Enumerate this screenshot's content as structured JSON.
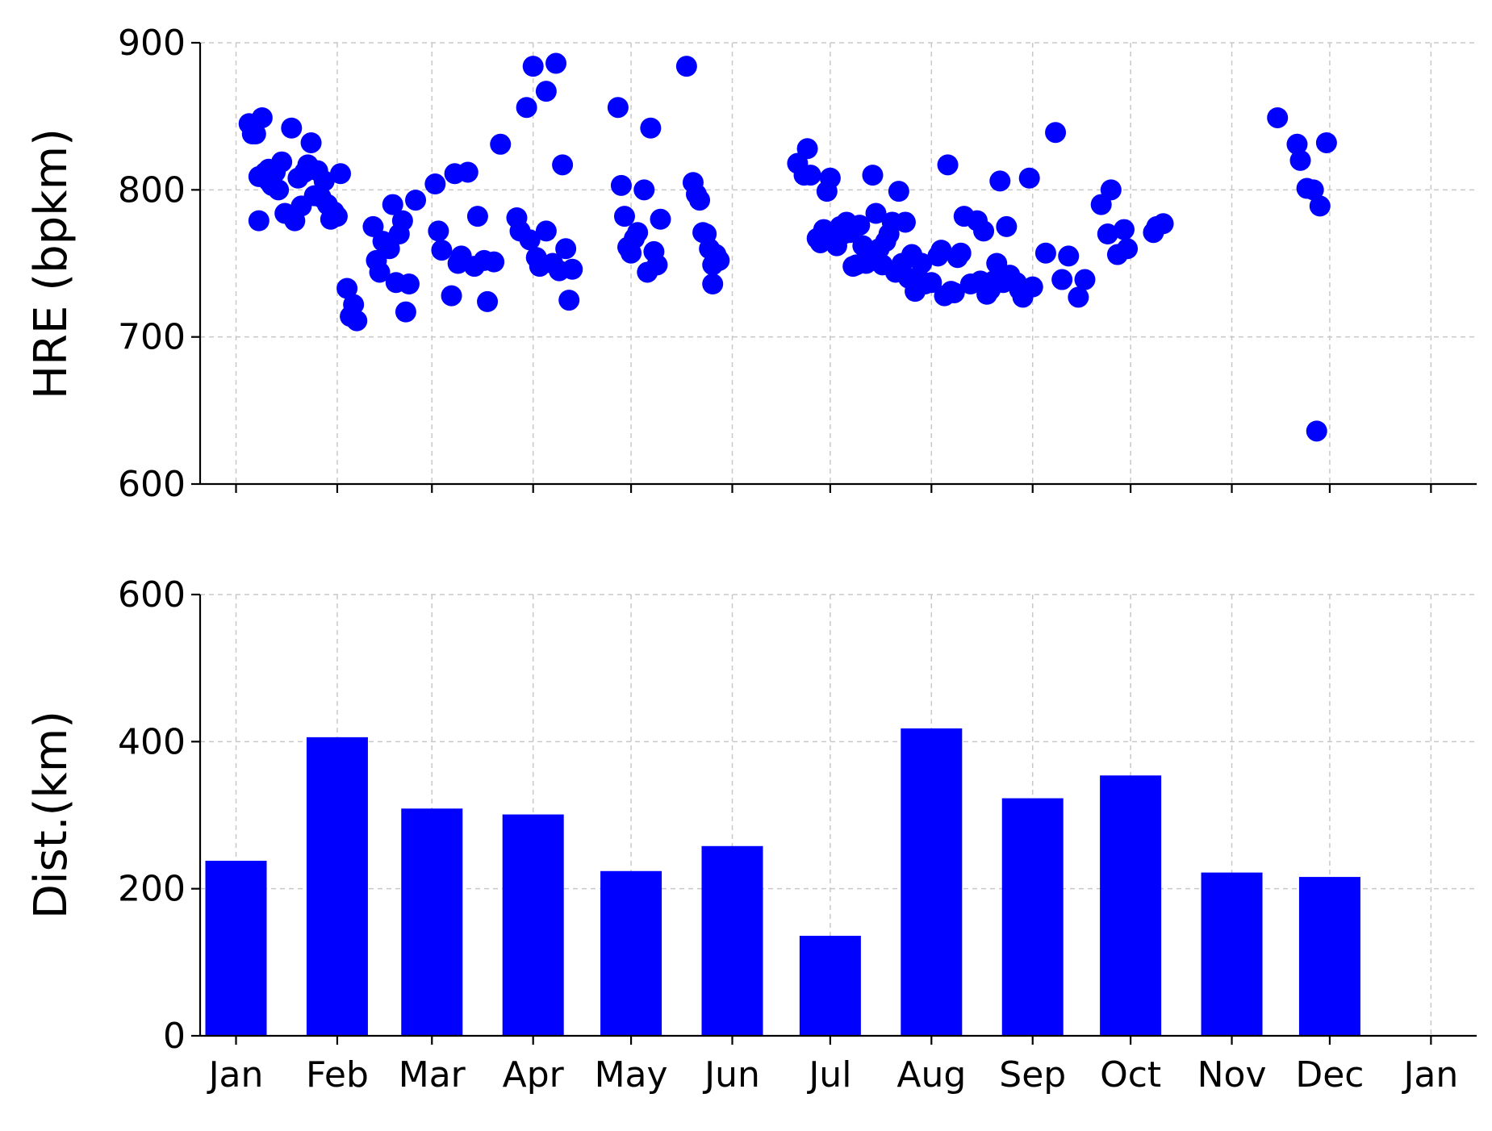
{
  "chart_data": [
    {
      "type": "scatter",
      "ylabel": "HRE (bpkm)",
      "ylim": [
        600,
        900
      ],
      "yticks": [
        "600",
        "700",
        "800",
        "900"
      ],
      "xlim": [
        "2023-12-21",
        "2025-01-15"
      ],
      "xticks": [
        "2024-01-01",
        "2024-02-01",
        "2024-03-01",
        "2024-04-01",
        "2024-05-01",
        "2024-06-01",
        "2024-07-01",
        "2024-08-01",
        "2024-09-01",
        "2024-10-01",
        "2024-11-01",
        "2024-12-01",
        "2025-01-01"
      ],
      "xtick_labels": [],
      "grid": true,
      "color": "#0000ff",
      "points": [
        [
          "2024-01-05",
          845
        ],
        [
          "2024-01-06",
          838
        ],
        [
          "2024-01-07",
          838
        ],
        [
          "2024-01-08",
          779
        ],
        [
          "2024-01-08",
          809
        ],
        [
          "2024-01-09",
          849
        ],
        [
          "2024-01-10",
          812
        ],
        [
          "2024-01-11",
          814
        ],
        [
          "2024-01-11",
          806
        ],
        [
          "2024-01-12",
          803
        ],
        [
          "2024-01-13",
          812
        ],
        [
          "2024-01-14",
          800
        ],
        [
          "2024-01-15",
          819
        ],
        [
          "2024-01-16",
          784
        ],
        [
          "2024-01-18",
          842
        ],
        [
          "2024-01-19",
          779
        ],
        [
          "2024-01-20",
          808
        ],
        [
          "2024-01-21",
          789
        ],
        [
          "2024-01-22",
          812
        ],
        [
          "2024-01-23",
          817
        ],
        [
          "2024-01-24",
          832
        ],
        [
          "2024-01-25",
          796
        ],
        [
          "2024-01-26",
          813
        ],
        [
          "2024-01-27",
          795
        ],
        [
          "2024-01-28",
          806
        ],
        [
          "2024-01-29",
          790
        ],
        [
          "2024-01-30",
          780
        ],
        [
          "2024-01-31",
          785
        ],
        [
          "2024-02-01",
          782
        ],
        [
          "2024-02-02",
          811
        ],
        [
          "2024-02-04",
          733
        ],
        [
          "2024-02-05",
          714
        ],
        [
          "2024-02-06",
          722
        ],
        [
          "2024-02-07",
          711
        ],
        [
          "2024-02-12",
          775
        ],
        [
          "2024-02-13",
          752
        ],
        [
          "2024-02-14",
          744
        ],
        [
          "2024-02-15",
          765
        ],
        [
          "2024-02-17",
          760
        ],
        [
          "2024-02-18",
          790
        ],
        [
          "2024-02-19",
          737
        ],
        [
          "2024-02-20",
          770
        ],
        [
          "2024-02-21",
          779
        ],
        [
          "2024-02-22",
          717
        ],
        [
          "2024-02-23",
          736
        ],
        [
          "2024-02-25",
          793
        ],
        [
          "2024-03-02",
          804
        ],
        [
          "2024-03-03",
          772
        ],
        [
          "2024-03-04",
          759
        ],
        [
          "2024-03-07",
          728
        ],
        [
          "2024-03-08",
          811
        ],
        [
          "2024-03-09",
          750
        ],
        [
          "2024-03-10",
          755
        ],
        [
          "2024-03-12",
          812
        ],
        [
          "2024-03-14",
          748
        ],
        [
          "2024-03-15",
          782
        ],
        [
          "2024-03-17",
          752
        ],
        [
          "2024-03-18",
          724
        ],
        [
          "2024-03-20",
          751
        ],
        [
          "2024-03-22",
          831
        ],
        [
          "2024-03-27",
          781
        ],
        [
          "2024-03-28",
          772
        ],
        [
          "2024-03-30",
          856
        ],
        [
          "2024-03-31",
          766
        ],
        [
          "2024-04-01",
          884
        ],
        [
          "2024-04-02",
          754
        ],
        [
          "2024-04-03",
          748
        ],
        [
          "2024-04-05",
          867
        ],
        [
          "2024-04-05",
          772
        ],
        [
          "2024-04-07",
          750
        ],
        [
          "2024-04-08",
          886
        ],
        [
          "2024-04-09",
          745
        ],
        [
          "2024-04-10",
          817
        ],
        [
          "2024-04-11",
          760
        ],
        [
          "2024-04-12",
          725
        ],
        [
          "2024-04-13",
          746
        ],
        [
          "2024-04-27",
          856
        ],
        [
          "2024-04-28",
          803
        ],
        [
          "2024-04-29",
          782
        ],
        [
          "2024-04-30",
          761
        ],
        [
          "2024-05-01",
          757
        ],
        [
          "2024-05-02",
          767
        ],
        [
          "2024-05-03",
          771
        ],
        [
          "2024-05-05",
          800
        ],
        [
          "2024-05-06",
          744
        ],
        [
          "2024-05-07",
          842
        ],
        [
          "2024-05-08",
          758
        ],
        [
          "2024-05-09",
          749
        ],
        [
          "2024-05-10",
          780
        ],
        [
          "2024-05-18",
          884
        ],
        [
          "2024-05-20",
          805
        ],
        [
          "2024-05-21",
          797
        ],
        [
          "2024-05-22",
          793
        ],
        [
          "2024-05-23",
          771
        ],
        [
          "2024-05-24",
          770
        ],
        [
          "2024-05-25",
          760
        ],
        [
          "2024-05-26",
          749
        ],
        [
          "2024-05-26",
          736
        ],
        [
          "2024-05-27",
          756
        ],
        [
          "2024-05-28",
          752
        ],
        [
          "2024-06-21",
          818
        ],
        [
          "2024-06-23",
          810
        ],
        [
          "2024-06-24",
          828
        ],
        [
          "2024-06-25",
          810
        ],
        [
          "2024-06-27",
          767
        ],
        [
          "2024-06-28",
          764
        ],
        [
          "2024-06-29",
          773
        ],
        [
          "2024-06-30",
          799
        ],
        [
          "2024-07-01",
          808
        ],
        [
          "2024-07-02",
          765
        ],
        [
          "2024-07-03",
          762
        ],
        [
          "2024-07-04",
          775
        ],
        [
          "2024-07-05",
          770
        ],
        [
          "2024-07-06",
          778
        ],
        [
          "2024-07-07",
          771
        ],
        [
          "2024-07-08",
          748
        ],
        [
          "2024-07-09",
          749
        ],
        [
          "2024-07-10",
          776
        ],
        [
          "2024-07-11",
          762
        ],
        [
          "2024-07-12",
          750
        ],
        [
          "2024-07-13",
          755
        ],
        [
          "2024-07-14",
          810
        ],
        [
          "2024-07-15",
          784
        ],
        [
          "2024-07-16",
          760
        ],
        [
          "2024-07-17",
          749
        ],
        [
          "2024-07-18",
          765
        ],
        [
          "2024-07-19",
          770
        ],
        [
          "2024-07-20",
          778
        ],
        [
          "2024-07-21",
          744
        ],
        [
          "2024-07-22",
          799
        ],
        [
          "2024-07-23",
          750
        ],
        [
          "2024-07-24",
          778
        ],
        [
          "2024-07-25",
          740
        ],
        [
          "2024-07-26",
          756
        ],
        [
          "2024-07-27",
          731
        ],
        [
          "2024-07-28",
          740
        ],
        [
          "2024-07-29",
          750
        ],
        [
          "2024-07-30",
          736
        ],
        [
          "2024-08-01",
          737
        ],
        [
          "2024-08-03",
          755
        ],
        [
          "2024-08-04",
          759
        ],
        [
          "2024-08-05",
          728
        ],
        [
          "2024-08-06",
          817
        ],
        [
          "2024-08-07",
          731
        ],
        [
          "2024-08-08",
          730
        ],
        [
          "2024-08-09",
          754
        ],
        [
          "2024-08-10",
          757
        ],
        [
          "2024-08-11",
          782
        ],
        [
          "2024-08-13",
          736
        ],
        [
          "2024-08-15",
          779
        ],
        [
          "2024-08-16",
          738
        ],
        [
          "2024-08-17",
          772
        ],
        [
          "2024-08-18",
          729
        ],
        [
          "2024-08-19",
          732
        ],
        [
          "2024-08-20",
          738
        ],
        [
          "2024-08-21",
          750
        ],
        [
          "2024-08-22",
          806
        ],
        [
          "2024-08-23",
          737
        ],
        [
          "2024-08-24",
          775
        ],
        [
          "2024-08-25",
          742
        ],
        [
          "2024-08-27",
          737
        ],
        [
          "2024-08-28",
          732
        ],
        [
          "2024-08-29",
          727
        ],
        [
          "2024-08-31",
          808
        ],
        [
          "2024-09-01",
          734
        ],
        [
          "2024-09-05",
          757
        ],
        [
          "2024-09-08",
          839
        ],
        [
          "2024-09-10",
          739
        ],
        [
          "2024-09-12",
          755
        ],
        [
          "2024-09-15",
          727
        ],
        [
          "2024-09-17",
          739
        ],
        [
          "2024-09-22",
          790
        ],
        [
          "2024-09-24",
          770
        ],
        [
          "2024-09-25",
          800
        ],
        [
          "2024-09-27",
          756
        ],
        [
          "2024-09-29",
          773
        ],
        [
          "2024-09-30",
          760
        ],
        [
          "2024-10-08",
          771
        ],
        [
          "2024-10-09",
          775
        ],
        [
          "2024-10-11",
          777
        ],
        [
          "2024-11-15",
          849
        ],
        [
          "2024-11-21",
          831
        ],
        [
          "2024-11-22",
          820
        ],
        [
          "2024-11-24",
          801
        ],
        [
          "2024-11-26",
          800
        ],
        [
          "2024-11-27",
          636
        ],
        [
          "2024-11-28",
          789
        ],
        [
          "2024-11-30",
          832
        ]
      ]
    },
    {
      "type": "bar",
      "ylabel": "Dist.(km)",
      "ylim": [
        0,
        600
      ],
      "yticks": [
        "0",
        "200",
        "400",
        "600"
      ],
      "xlim": [
        "2023-12-21",
        "2025-01-15"
      ],
      "xticks": [
        "2024-01-01",
        "2024-02-01",
        "2024-03-01",
        "2024-04-01",
        "2024-05-01",
        "2024-06-01",
        "2024-07-01",
        "2024-08-01",
        "2024-09-01",
        "2024-10-01",
        "2024-11-01",
        "2024-12-01",
        "2025-01-01"
      ],
      "xtick_labels": [
        "Jan",
        "Feb",
        "Mar",
        "Apr",
        "May",
        "Jun",
        "Jul",
        "Aug",
        "Sep",
        "Oct",
        "Nov",
        "Dec",
        "Jan"
      ],
      "grid": true,
      "color": "#0000ff",
      "bar_centers": [
        "2024-01-01",
        "2024-02-01",
        "2024-03-01",
        "2024-04-01",
        "2024-05-01",
        "2024-06-01",
        "2024-07-01",
        "2024-08-01",
        "2024-09-01",
        "2024-10-01",
        "2024-11-01",
        "2024-12-01"
      ],
      "values": [
        238,
        406,
        309,
        301,
        224,
        258,
        136,
        418,
        323,
        354,
        222,
        216
      ]
    }
  ]
}
